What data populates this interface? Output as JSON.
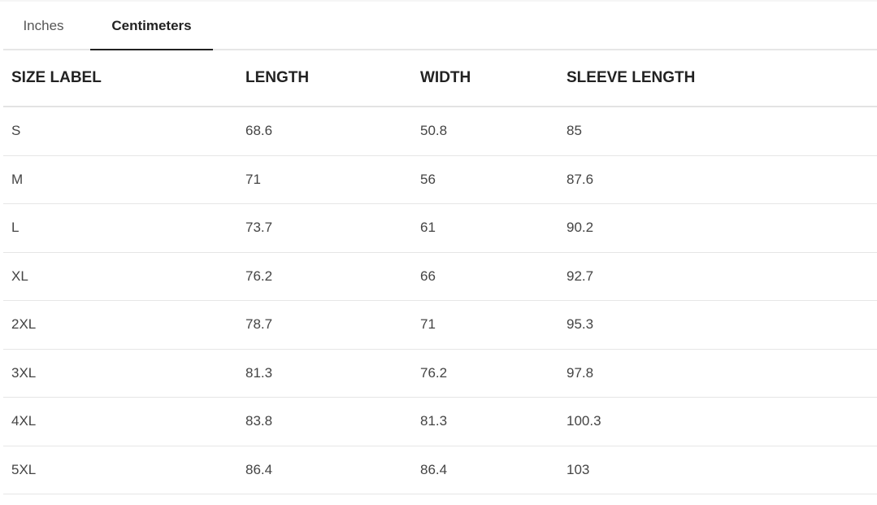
{
  "tabs": [
    {
      "label": "Inches",
      "active": false
    },
    {
      "label": "Centimeters",
      "active": true
    }
  ],
  "table": {
    "headers": [
      "SIZE LABEL",
      "LENGTH",
      "WIDTH",
      "SLEEVE LENGTH"
    ],
    "rows": [
      [
        "S",
        "68.6",
        "50.8",
        "85"
      ],
      [
        "M",
        "71",
        "56",
        "87.6"
      ],
      [
        "L",
        "73.7",
        "61",
        "90.2"
      ],
      [
        "XL",
        "76.2",
        "66",
        "92.7"
      ],
      [
        "2XL",
        "78.7",
        "71",
        "95.3"
      ],
      [
        "3XL",
        "81.3",
        "76.2",
        "97.8"
      ],
      [
        "4XL",
        "83.8",
        "81.3",
        "100.3"
      ],
      [
        "5XL",
        "86.4",
        "86.4",
        "103"
      ]
    ]
  }
}
